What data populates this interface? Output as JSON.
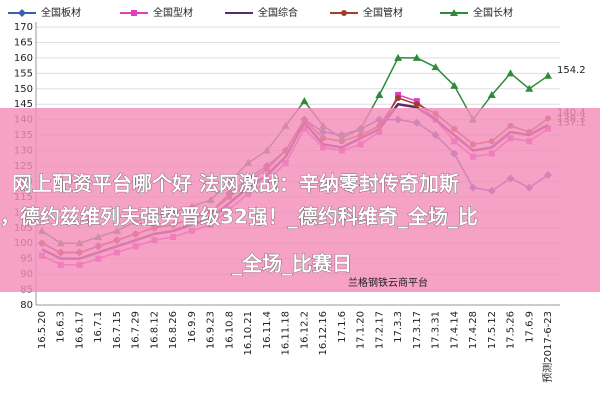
{
  "chart_data": {
    "type": "line",
    "categories": [
      "16.5.20",
      "16.6.3",
      "16.6.17",
      "16.7.1",
      "16.7.15",
      "16.7.29",
      "16.8.12",
      "16.8.26",
      "16.9.9",
      "16.9.23",
      "16.10.8",
      "16.10.21",
      "16.11.4",
      "16.11.18",
      "16.12.2",
      "16.12.16",
      "17.1.6",
      "17.1.20",
      "17.2.17",
      "17.3.3",
      "17.3.17",
      "17.3.31",
      "17.4.14",
      "17.4.28",
      "17.5.12",
      "17.5.26",
      "17.6.9",
      "预测2017-6-23"
    ],
    "series": [
      {
        "name": "全国板材",
        "color": "#3a5fb0",
        "marker": "diamond",
        "last_label": false,
        "values": [
          100,
          97,
          97,
          99,
          101,
          103,
          105,
          106,
          108,
          110,
          116,
          121,
          125,
          130,
          140,
          136,
          135,
          137,
          140,
          140,
          139,
          135,
          129,
          118,
          117,
          121,
          118,
          122.1
        ]
      },
      {
        "name": "全国型材",
        "color": "#e040c0",
        "marker": "square",
        "last_label": true,
        "values": [
          96,
          93,
          93,
          95,
          97,
          99,
          101,
          102,
          104,
          106,
          111,
          116,
          120,
          126,
          137,
          131,
          130,
          132,
          136,
          148,
          146,
          140,
          133,
          128,
          129,
          134,
          133,
          137.1
        ]
      },
      {
        "name": "全国综合",
        "color": "#5a2a6a",
        "marker": "none",
        "last_label": true,
        "values": [
          98,
          95,
          95,
          97,
          99,
          101,
          103,
          104,
          106,
          108,
          113,
          118,
          122,
          128,
          139,
          132,
          131,
          134,
          137,
          145,
          144,
          140,
          135,
          130,
          131,
          136,
          135,
          138.3
        ]
      },
      {
        "name": "全国管材",
        "color": "#a0402a",
        "marker": "circle",
        "last_label": true,
        "values": [
          100,
          97,
          97,
          99,
          101,
          103,
          105,
          106,
          108,
          110,
          115,
          120,
          124,
          130,
          140,
          134,
          133,
          135,
          138,
          147,
          145,
          142,
          137,
          132,
          133,
          138,
          136,
          140.4
        ]
      },
      {
        "name": "全国长材",
        "color": "#2e8b3a",
        "marker": "triangle",
        "last_label": true,
        "values": [
          104,
          100,
          100,
          102,
          104,
          107,
          109,
          110,
          112,
          114,
          120,
          126,
          130,
          138,
          146,
          138,
          134,
          137,
          148,
          160,
          160,
          157,
          151,
          140,
          148,
          155,
          150,
          154.2
        ]
      }
    ],
    "ylim": [
      80,
      170
    ],
    "yticks": [
      80,
      85,
      90,
      95,
      100,
      105,
      110,
      115,
      120,
      125,
      130,
      135,
      140,
      145,
      150,
      155,
      160,
      165,
      170
    ],
    "grid": true
  },
  "overlay": {
    "lines": [
      "网上配资平台哪个好 法网激战：辛纳零封传奇加斯",
      "，德约兹维列夫强势晋级32强！_德约科维奇_全场_比",
      "_全场_比赛日"
    ],
    "watermark": "兰格钢铁云商平台"
  }
}
